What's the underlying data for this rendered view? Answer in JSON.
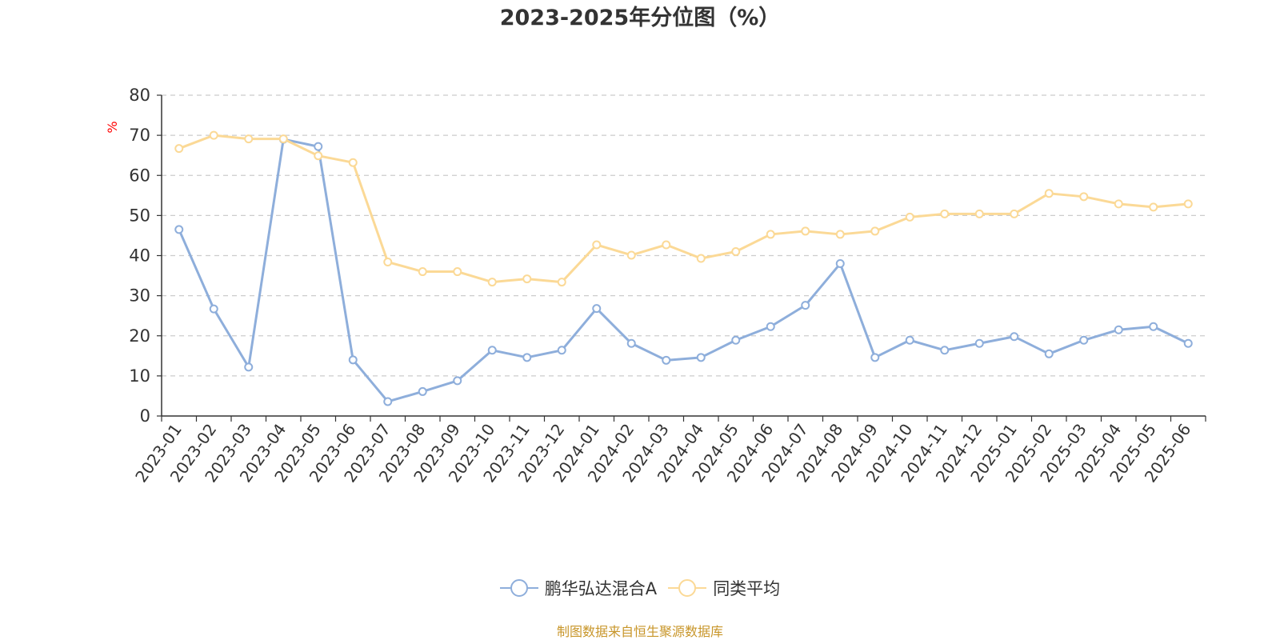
{
  "chart_data": {
    "type": "line",
    "title": "2023-2025年分位图（%）",
    "ylabel": "%",
    "ylim": [
      0,
      80
    ],
    "yticks": [
      0,
      10,
      20,
      30,
      40,
      50,
      60,
      70,
      80
    ],
    "grid": true,
    "legend_position": "bottom-center",
    "categories": [
      "2023-01",
      "2023-02",
      "2023-03",
      "2023-04",
      "2023-05",
      "2023-06",
      "2023-07",
      "2023-08",
      "2023-09",
      "2023-10",
      "2023-11",
      "2023-12",
      "2024-01",
      "2024-02",
      "2024-03",
      "2024-04",
      "2024-05",
      "2024-06",
      "2024-07",
      "2024-08",
      "2024-09",
      "2024-10",
      "2024-11",
      "2024-12",
      "2025-01",
      "2025-02",
      "2025-03",
      "2025-04",
      "2025-05",
      "2025-06"
    ],
    "series": [
      {
        "name": "鹏华弘达混合A",
        "color": "#8eaedb",
        "values": [
          46.5,
          26.7,
          12.2,
          69.0,
          67.2,
          14.0,
          3.6,
          6.1,
          8.8,
          16.4,
          14.6,
          16.4,
          26.8,
          18.1,
          13.9,
          14.6,
          18.9,
          22.3,
          27.6,
          38.0,
          14.6,
          18.9,
          16.4,
          18.1,
          19.8,
          15.5,
          18.9,
          21.5,
          22.3,
          18.1
        ]
      },
      {
        "name": "同类平均",
        "color": "#fbd996",
        "values": [
          66.7,
          70.0,
          69.1,
          69.1,
          64.9,
          63.2,
          38.4,
          36.0,
          36.0,
          33.4,
          34.2,
          33.4,
          42.7,
          40.1,
          42.7,
          39.3,
          41.0,
          45.3,
          46.1,
          45.3,
          46.1,
          49.6,
          50.4,
          50.4,
          50.4,
          55.5,
          54.7,
          52.9,
          52.1,
          52.9
        ]
      }
    ]
  },
  "footer": {
    "source_text": "制图数据来自恒生聚源数据库",
    "source_color": "#c8962a"
  },
  "colors": {
    "axis": "#333333",
    "grid": "#cccccc",
    "ylabel": "#ff0000"
  }
}
